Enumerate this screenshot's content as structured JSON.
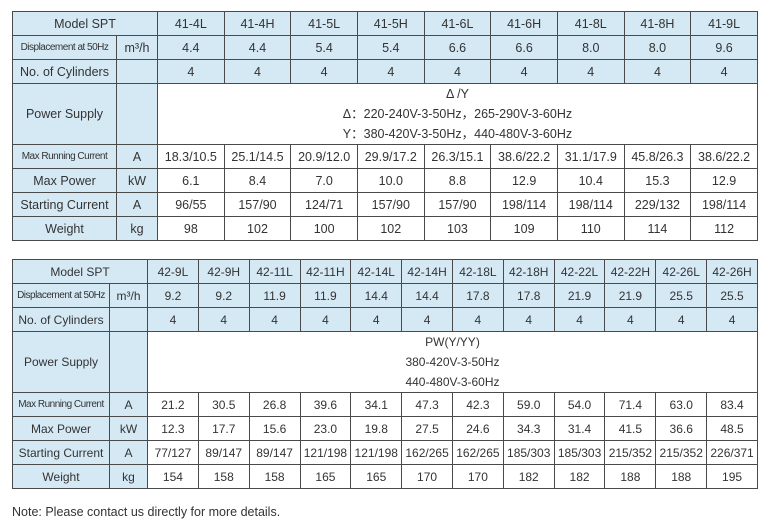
{
  "tables": [
    {
      "model_label": "Model SPT",
      "models": [
        "41-4L",
        "41-4H",
        "41-5L",
        "41-5H",
        "41-6L",
        "41-6H",
        "41-8L",
        "41-8H",
        "41-9L"
      ],
      "rows_top": [
        {
          "label": "Displacement at 50Hz",
          "unit": "m³/h",
          "values": [
            "4.4",
            "4.4",
            "5.4",
            "5.4",
            "6.6",
            "6.6",
            "8.0",
            "8.0",
            "9.6"
          ]
        },
        {
          "label": "No. of Cylinders",
          "unit": "",
          "values": [
            "4",
            "4",
            "4",
            "4",
            "4",
            "4",
            "4",
            "4",
            "4"
          ]
        }
      ],
      "power_supply": {
        "label": "Power Supply",
        "unit": "",
        "lines": [
          "Δ /Y",
          "Δ：220-240V-3-50Hz，265-290V-3-60Hz",
          "Y：380-420V-3-50Hz，440-480V-3-60Hz"
        ]
      },
      "rows_bottom": [
        {
          "label": "Max Running Current",
          "unit": "A",
          "values": [
            "18.3/10.5",
            "25.1/14.5",
            "20.9/12.0",
            "29.9/17.2",
            "26.3/15.1",
            "38.6/22.2",
            "31.1/17.9",
            "45.8/26.3",
            "38.6/22.2"
          ]
        },
        {
          "label": "Max Power",
          "unit": "kW",
          "values": [
            "6.1",
            "8.4",
            "7.0",
            "10.0",
            "8.8",
            "12.9",
            "10.4",
            "15.3",
            "12.9"
          ]
        },
        {
          "label": "Starting Current",
          "unit": "A",
          "values": [
            "96/55",
            "157/90",
            "124/71",
            "157/90",
            "157/90",
            "198/114",
            "198/114",
            "229/132",
            "198/114"
          ]
        },
        {
          "label": "Weight",
          "unit": "kg",
          "values": [
            "98",
            "102",
            "100",
            "102",
            "103",
            "109",
            "110",
            "114",
            "112"
          ]
        }
      ]
    },
    {
      "model_label": "Model SPT",
      "models": [
        "42-9L",
        "42-9H",
        "42-11L",
        "42-11H",
        "42-14L",
        "42-14H",
        "42-18L",
        "42-18H",
        "42-22L",
        "42-22H",
        "42-26L",
        "42-26H"
      ],
      "rows_top": [
        {
          "label": "Displacement at 50Hz",
          "unit": "m³/h",
          "values": [
            "9.2",
            "9.2",
            "11.9",
            "11.9",
            "14.4",
            "14.4",
            "17.8",
            "17.8",
            "21.9",
            "21.9",
            "25.5",
            "25.5"
          ]
        },
        {
          "label": "No. of Cylinders",
          "unit": "",
          "values": [
            "4",
            "4",
            "4",
            "4",
            "4",
            "4",
            "4",
            "4",
            "4",
            "4",
            "4",
            "4"
          ]
        }
      ],
      "power_supply": {
        "label": "Power Supply",
        "unit": "",
        "lines": [
          "PW(Y/YY)",
          "380-420V-3-50Hz",
          "440-480V-3-60Hz"
        ]
      },
      "rows_bottom": [
        {
          "label": "Max Running Current",
          "unit": "A",
          "values": [
            "21.2",
            "30.5",
            "26.8",
            "39.6",
            "34.1",
            "47.3",
            "42.3",
            "59.0",
            "54.0",
            "71.4",
            "63.0",
            "83.4"
          ]
        },
        {
          "label": "Max Power",
          "unit": "kW",
          "values": [
            "12.3",
            "17.7",
            "15.6",
            "23.0",
            "19.8",
            "27.5",
            "24.6",
            "34.3",
            "31.4",
            "41.5",
            "36.6",
            "48.5"
          ]
        },
        {
          "label": "Starting Current",
          "unit": "A",
          "values": [
            "77/127",
            "89/147",
            "89/147",
            "121/198",
            "121/198",
            "162/265",
            "162/265",
            "185/303",
            "185/303",
            "215/352",
            "215/352",
            "226/371"
          ]
        },
        {
          "label": "Weight",
          "unit": "kg",
          "values": [
            "154",
            "158",
            "158",
            "165",
            "165",
            "170",
            "170",
            "182",
            "182",
            "188",
            "188",
            "195"
          ]
        }
      ]
    }
  ],
  "note": "Note: Please contact us directly for more details.",
  "colors": {
    "header_bg": "#d5e9f5",
    "border": "#4a4a4a",
    "text": "#333333"
  }
}
